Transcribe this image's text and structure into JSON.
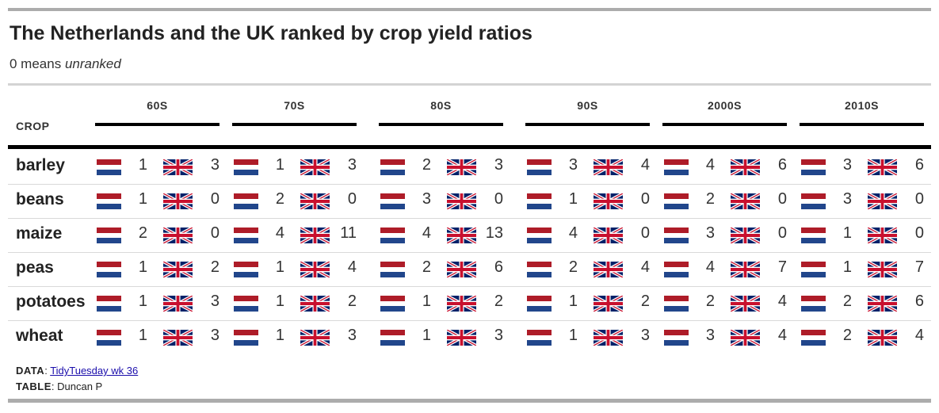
{
  "title": "The Netherlands and the UK ranked by crop yield ratios",
  "subtitle": {
    "lead": "0 means ",
    "emph": "unranked"
  },
  "table": {
    "crop_header": "CROP",
    "decades": [
      "60S",
      "70S",
      "80S",
      "90S",
      "2000S",
      "2010S"
    ],
    "flags": {
      "nl": "netherlands-flag-icon",
      "uk": "uk-flag-icon"
    },
    "rows": [
      {
        "crop": "barley",
        "ranks": [
          [
            1,
            3
          ],
          [
            1,
            3
          ],
          [
            2,
            3
          ],
          [
            3,
            4
          ],
          [
            4,
            6
          ],
          [
            3,
            6
          ]
        ]
      },
      {
        "crop": "beans",
        "ranks": [
          [
            1,
            0
          ],
          [
            2,
            0
          ],
          [
            3,
            0
          ],
          [
            1,
            0
          ],
          [
            2,
            0
          ],
          [
            3,
            0
          ]
        ]
      },
      {
        "crop": "maize",
        "ranks": [
          [
            2,
            0
          ],
          [
            4,
            11
          ],
          [
            4,
            13
          ],
          [
            4,
            0
          ],
          [
            3,
            0
          ],
          [
            1,
            0
          ]
        ]
      },
      {
        "crop": "peas",
        "ranks": [
          [
            1,
            2
          ],
          [
            1,
            4
          ],
          [
            2,
            6
          ],
          [
            2,
            4
          ],
          [
            4,
            7
          ],
          [
            1,
            7
          ]
        ]
      },
      {
        "crop": "potatoes",
        "ranks": [
          [
            1,
            3
          ],
          [
            1,
            2
          ],
          [
            1,
            2
          ],
          [
            1,
            2
          ],
          [
            2,
            4
          ],
          [
            2,
            6
          ]
        ]
      },
      {
        "crop": "wheat",
        "ranks": [
          [
            1,
            3
          ],
          [
            1,
            3
          ],
          [
            1,
            3
          ],
          [
            1,
            3
          ],
          [
            3,
            4
          ],
          [
            2,
            4
          ]
        ]
      }
    ]
  },
  "footer": {
    "data_label": "DATA",
    "data_link": "TidyTuesday wk 36",
    "table_label": "TABLE",
    "table_credit": "Duncan P"
  },
  "colors": {
    "nl_red": "#ae1c28",
    "nl_blue": "#21468b",
    "uk_blue": "#012169",
    "uk_red": "#c8102e",
    "rule": "#000000",
    "frame": "#acacac"
  }
}
